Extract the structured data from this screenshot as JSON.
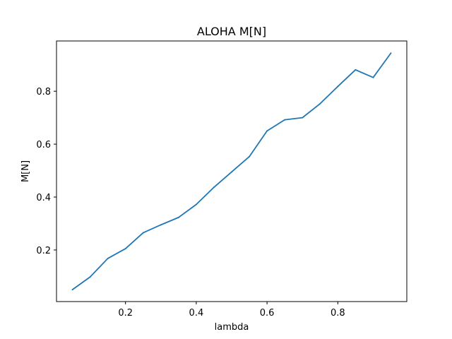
{
  "chart_data": {
    "type": "line",
    "title": "ALOHA M[N]",
    "xlabel": "lambda",
    "ylabel": "M[N]",
    "xlim": [
      0.005,
      0.995
    ],
    "ylim": [
      0.005,
      0.99
    ],
    "x_ticks": [
      0.2,
      0.4,
      0.6,
      0.8
    ],
    "y_ticks": [
      0.2,
      0.4,
      0.6,
      0.8
    ],
    "x_tick_labels": [
      "0.2",
      "0.4",
      "0.6",
      "0.8"
    ],
    "y_tick_labels": [
      "0.2",
      "0.4",
      "0.6",
      "0.8"
    ],
    "grid": false,
    "series": [
      {
        "color": "#1f77b4",
        "x": [
          0.05,
          0.1,
          0.15,
          0.2,
          0.25,
          0.3,
          0.35,
          0.4,
          0.45,
          0.5,
          0.55,
          0.6,
          0.65,
          0.7,
          0.75,
          0.8,
          0.85,
          0.9,
          0.95
        ],
        "y": [
          0.05,
          0.098,
          0.168,
          0.205,
          0.265,
          0.295,
          0.323,
          0.372,
          0.437,
          0.495,
          0.553,
          0.65,
          0.692,
          0.7,
          0.753,
          0.818,
          0.881,
          0.852,
          0.944
        ]
      }
    ]
  }
}
